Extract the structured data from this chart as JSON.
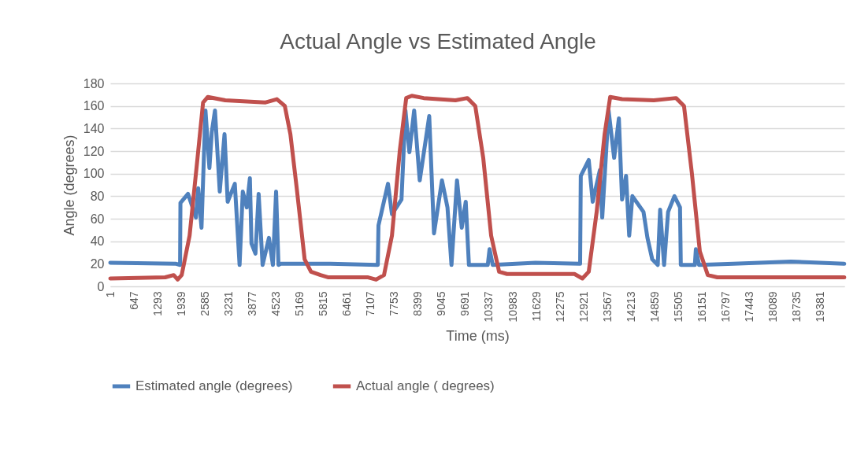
{
  "chart_data": {
    "type": "line",
    "title": "Actual Angle vs Estimated Angle",
    "xlabel": "Time (ms)",
    "ylabel": "Angle (degrees)",
    "xlim": [
      1,
      20030
    ],
    "xticks": [
      1,
      647,
      1293,
      1939,
      2585,
      3231,
      3877,
      4523,
      5169,
      5815,
      6461,
      7107,
      7753,
      8399,
      9045,
      9691,
      10337,
      10983,
      11629,
      12275,
      12921,
      13567,
      14213,
      14859,
      15505,
      16151,
      16797,
      17443,
      18089,
      18735,
      19381
    ],
    "ylim": [
      0,
      180
    ],
    "yticks": [
      0,
      20,
      40,
      60,
      80,
      100,
      120,
      140,
      160,
      180
    ],
    "grid": "y",
    "legend": "bottom",
    "marker": "none",
    "line_style": "solid",
    "series": [
      {
        "name": "Estimated angle (degrees)",
        "color": "#4f81bd",
        "x": [
          1,
          1800,
          1905,
          1915,
          2122,
          2338,
          2400,
          2490,
          2598,
          2706,
          2771,
          2858,
          2988,
          3118,
          3204,
          3399,
          3529,
          3616,
          3724,
          3810,
          3854,
          3962,
          4049,
          4157,
          4330,
          4438,
          4525,
          4590,
          4655,
          6000,
          7300,
          7318,
          7578,
          7686,
          7946,
          8054,
          8162,
          8292,
          8444,
          8703,
          8833,
          9050,
          9201,
          9310,
          9461,
          9591,
          9699,
          9786,
          10300,
          10349,
          10435,
          11600,
          12820,
          12838,
          13055,
          13163,
          13358,
          13423,
          13596,
          13748,
          13877,
          13964,
          14073,
          14159,
          14246,
          14549,
          14657,
          14787,
          14938,
          15003,
          15111,
          15220,
          15393,
          15545,
          15567,
          15950,
          15978,
          16064,
          17000,
          18575,
          20026
        ],
        "values": [
          21,
          20,
          19,
          74,
          82,
          61,
          87,
          52,
          156,
          105,
          137,
          156,
          84,
          135,
          75,
          91,
          19,
          84,
          70,
          96,
          38,
          29,
          82,
          19,
          43,
          19,
          84,
          19,
          20,
          20,
          19,
          54,
          91,
          64,
          77,
          156,
          119,
          156,
          94,
          151,
          47,
          94,
          70,
          19,
          94,
          52,
          75,
          19,
          19,
          33,
          19,
          21,
          20,
          98,
          112,
          75,
          103,
          61,
          156,
          114,
          149,
          77,
          98,
          45,
          80,
          66,
          43,
          24,
          19,
          68,
          19,
          66,
          80,
          70,
          19,
          19,
          33,
          19,
          20,
          22,
          20
        ]
      },
      {
        "name": "Actual angle ( degrees)",
        "color": "#c0504d",
        "x": [
          1,
          1500,
          1732,
          1840,
          1949,
          2165,
          2382,
          2533,
          2663,
          3139,
          4222,
          4547,
          4763,
          4915,
          5088,
          5304,
          5477,
          5737,
          5954,
          7036,
          7253,
          7469,
          7686,
          7902,
          8075,
          8227,
          8552,
          9418,
          9743,
          9959,
          10176,
          10392,
          10609,
          10825,
          12665,
          12882,
          13055,
          13271,
          13488,
          13640,
          13964,
          14830,
          15437,
          15654,
          15870,
          16086,
          16303,
          16562,
          20026
        ],
        "values": [
          7,
          8,
          10,
          6,
          10,
          45,
          114,
          163,
          168,
          165,
          163,
          166,
          160,
          135,
          87,
          24,
          13,
          10,
          8,
          8,
          6,
          10,
          45,
          121,
          167,
          169,
          167,
          165,
          167,
          160,
          114,
          45,
          13,
          11,
          11,
          7,
          13,
          66,
          135,
          168,
          166,
          165,
          167,
          160,
          100,
          31,
          10,
          8,
          8
        ]
      }
    ]
  }
}
